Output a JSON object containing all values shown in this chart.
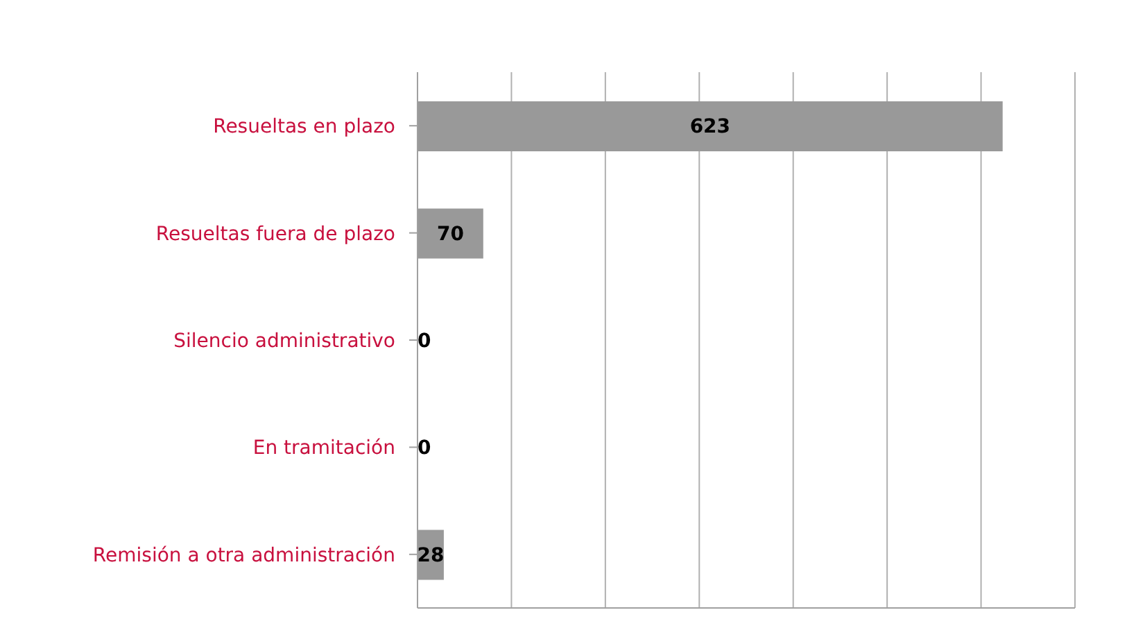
{
  "chart_data": {
    "type": "bar",
    "orientation": "horizontal",
    "categories": [
      "Resueltas en plazo",
      "Resueltas fuera de plazo",
      "Silencio administrativo",
      "En tramitación",
      "Remisión a otra administración"
    ],
    "values": [
      623,
      70,
      0,
      0,
      28
    ],
    "color": "#999999",
    "xlim": [
      0,
      700
    ],
    "xticks": [
      {
        "value": 0,
        "label": null
      },
      {
        "value": 100,
        "label": null
      },
      {
        "value": 200,
        "label": null
      },
      {
        "value": 300,
        "label": null
      },
      {
        "value": 400,
        "label": null
      },
      {
        "value": 500,
        "label": null
      },
      {
        "value": 600,
        "label": null
      },
      {
        "value": 700,
        "label": null
      }
    ],
    "grid": "x",
    "data_labels": true,
    "legend": false
  }
}
